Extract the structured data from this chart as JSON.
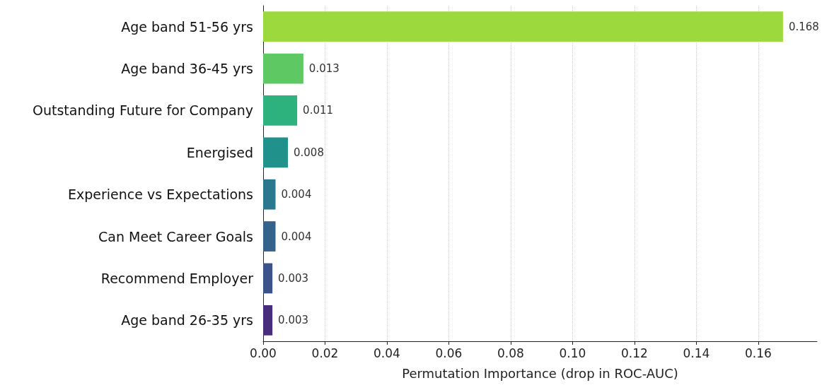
{
  "chart_data": {
    "type": "bar",
    "orientation": "horizontal",
    "categories": [
      "Age band 51-56 yrs",
      "Age band 36-45 yrs",
      "Outstanding Future for Company",
      "Energised",
      "Experience vs Expectations",
      "Can Meet Career Goals",
      "Recommend Employer",
      "Age band 26-35 yrs"
    ],
    "values": [
      0.168,
      0.013,
      0.011,
      0.008,
      0.004,
      0.004,
      0.003,
      0.003
    ],
    "colors": [
      "#9bd93c",
      "#5ec962",
      "#2db27d",
      "#21918c",
      "#2a788e",
      "#33638d",
      "#3b528b",
      "#472d7b"
    ],
    "xlabel": "Permutation Importance (drop in ROC-AUC)",
    "xlim": [
      0,
      0.179
    ],
    "xticks": [
      {
        "value": 0,
        "label": "0.00"
      },
      {
        "value": 0.02,
        "label": "0.02"
      },
      {
        "value": 0.04,
        "label": "0.04"
      },
      {
        "value": 0.06,
        "label": "0.06"
      },
      {
        "value": 0.08,
        "label": "0.08"
      },
      {
        "value": 0.1,
        "label": "0.10"
      },
      {
        "value": 0.12,
        "label": "0.12"
      },
      {
        "value": 0.14,
        "label": "0.14"
      },
      {
        "value": 0.16,
        "label": "0.16"
      }
    ],
    "grid": "x",
    "data_labels": true
  }
}
